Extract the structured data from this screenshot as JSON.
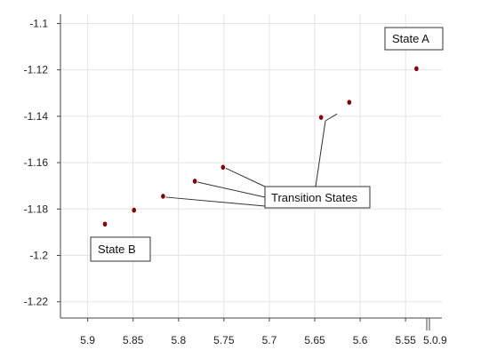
{
  "chart_data": {
    "type": "scatter",
    "title": "",
    "xlabel": "",
    "ylabel": "",
    "x_reversed": true,
    "xlim": [
      5.93,
      5.51
    ],
    "ylim": [
      -1.227,
      -1.096
    ],
    "x_ticks": [
      5.9,
      5.85,
      5.8,
      5.75,
      5.7,
      5.65,
      5.6,
      5.55
    ],
    "x_tick_labels": [
      "5.9",
      "5.85",
      "5.8",
      "5.75",
      "5.7",
      "5.65",
      "5.6",
      "5.55"
    ],
    "y_ticks": [
      -1.1,
      -1.12,
      -1.14,
      -1.16,
      -1.18,
      -1.2,
      -1.22
    ],
    "y_tick_labels": [
      "-1.1",
      "-1.12",
      "-1.14",
      "-1.16",
      "-1.18",
      "-1.2",
      "-1.22"
    ],
    "stray_axis_text": "5.0.9",
    "grid": true,
    "point_color": "#8b0000",
    "series": [
      {
        "x": [
          5.538,
          5.612,
          5.643,
          5.751,
          5.782,
          5.817,
          5.849,
          5.881
        ],
        "y": [
          -1.1195,
          -1.134,
          -1.1405,
          -1.162,
          -1.168,
          -1.1745,
          -1.1805,
          -1.1865
        ]
      }
    ],
    "annotations": {
      "state_a": {
        "text": "State A",
        "point_index": 0
      },
      "state_b": {
        "text": "State B",
        "point_index": 7
      },
      "transition": {
        "text": "Transition States",
        "point_indices": [
          3,
          4,
          5,
          2
        ]
      }
    }
  }
}
